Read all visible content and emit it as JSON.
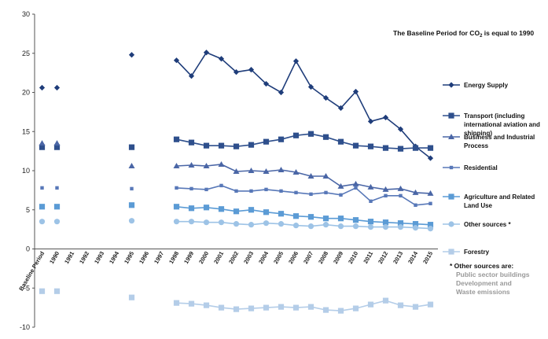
{
  "chart_data": {
    "type": "line",
    "title": "",
    "annotation": {
      "prefix": "The Baseline Period for CO",
      "sub": "2",
      "suffix": " is equal to 1990"
    },
    "xlabel": "",
    "ylabel": "",
    "ylim": [
      -10,
      30
    ],
    "yticks": [
      -10,
      -5,
      0,
      5,
      10,
      15,
      20,
      25,
      30
    ],
    "grid": false,
    "legend_position": "right",
    "categories": [
      "Baseline Period",
      "1990",
      "1991",
      "1992",
      "1993",
      "1994",
      "1995",
      "1996",
      "1997",
      "1998",
      "1999",
      "2000",
      "2001",
      "2002",
      "2003",
      "2004",
      "2005",
      "2006",
      "2007",
      "2008",
      "2009",
      "2010",
      "2011",
      "2012",
      "2013",
      "2014",
      "2015"
    ],
    "series": [
      {
        "name": "Energy Supply",
        "color": "#1f3d7a",
        "marker": "diamond",
        "values": [
          20.6,
          20.6,
          null,
          null,
          null,
          null,
          24.8,
          null,
          null,
          24.1,
          22.1,
          25.1,
          24.3,
          22.6,
          22.9,
          21.1,
          20.0,
          24.0,
          20.7,
          19.3,
          18.0,
          20.1,
          16.3,
          16.8,
          15.3,
          13.1,
          11.6
        ]
      },
      {
        "name": "Transport (including international aviation and shipping)",
        "color": "#2e4f8c",
        "marker": "square",
        "values": [
          13.0,
          13.0,
          null,
          null,
          null,
          null,
          13.0,
          null,
          null,
          14.0,
          13.6,
          13.2,
          13.2,
          13.1,
          13.3,
          13.7,
          14.0,
          14.5,
          14.7,
          14.3,
          13.7,
          13.2,
          13.1,
          12.9,
          12.8,
          12.9,
          12.9
        ]
      },
      {
        "name": "Business and Industrial Process",
        "color": "#4a66a6",
        "marker": "triangle",
        "values": [
          13.5,
          13.5,
          null,
          null,
          null,
          null,
          10.6,
          null,
          null,
          10.6,
          10.7,
          10.6,
          10.8,
          9.9,
          10.0,
          9.9,
          10.1,
          9.8,
          9.3,
          9.3,
          8.0,
          8.3,
          7.9,
          7.6,
          7.7,
          7.2,
          7.1
        ]
      },
      {
        "name": "Residential",
        "color": "#5878b8",
        "marker": "smallsquare",
        "values": [
          7.8,
          7.8,
          null,
          null,
          null,
          null,
          7.7,
          null,
          null,
          7.8,
          7.7,
          7.6,
          8.1,
          7.4,
          7.4,
          7.6,
          7.4,
          7.2,
          7.0,
          7.2,
          6.9,
          7.8,
          6.1,
          6.8,
          6.8,
          5.6,
          5.8
        ]
      },
      {
        "name": "Agriculture and Related Land Use",
        "color": "#5b9bd5",
        "marker": "square",
        "values": [
          5.4,
          5.4,
          null,
          null,
          null,
          null,
          5.6,
          null,
          null,
          5.4,
          5.2,
          5.3,
          5.1,
          4.8,
          5.0,
          4.7,
          4.5,
          4.2,
          4.1,
          3.9,
          3.9,
          3.7,
          3.5,
          3.4,
          3.3,
          3.2,
          3.1
        ]
      },
      {
        "name": "Other sources *",
        "color": "#9dc3e6",
        "marker": "circle",
        "values": [
          3.5,
          3.5,
          null,
          null,
          null,
          null,
          3.6,
          null,
          null,
          3.5,
          3.5,
          3.4,
          3.4,
          3.2,
          3.1,
          3.3,
          3.2,
          3.0,
          2.9,
          3.1,
          2.9,
          2.9,
          2.8,
          2.8,
          2.8,
          2.7,
          2.6
        ]
      },
      {
        "name": "Forestry",
        "color": "#b4cde8",
        "marker": "square",
        "values": [
          -5.4,
          -5.4,
          null,
          null,
          null,
          null,
          -6.2,
          null,
          null,
          -6.9,
          -7.0,
          -7.2,
          -7.5,
          -7.7,
          -7.6,
          -7.5,
          -7.4,
          -7.5,
          -7.4,
          -7.8,
          -7.9,
          -7.6,
          -7.1,
          -6.6,
          -7.2,
          -7.4,
          -7.1
        ]
      }
    ],
    "footnote": {
      "title": "* Other sources are:",
      "lines": [
        "Public sector buildings",
        "Development and",
        "Waste emissions"
      ]
    }
  }
}
